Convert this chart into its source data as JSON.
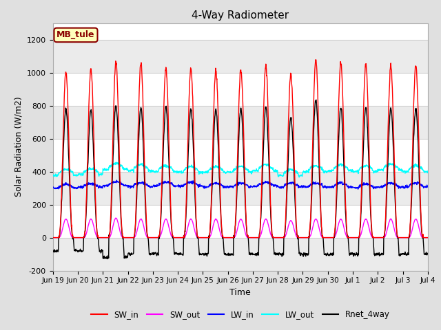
{
  "title": "4-Way Radiometer",
  "xlabel": "Time",
  "ylabel": "Solar Radiation (W/m2)",
  "ylim": [
    -200,
    1300
  ],
  "yticks": [
    -200,
    0,
    200,
    400,
    600,
    800,
    1000,
    1200
  ],
  "station_label": "MB_tule",
  "station_label_color": "#8B0000",
  "station_label_bg": "#FFFFBB",
  "x_tick_labels": [
    "Jun 19",
    "Jun 20",
    "Jun 21",
    "Jun 22",
    "Jun 23",
    "Jun 24",
    "Jun 25",
    "Jun 26",
    "Jun 27",
    "Jun 28",
    "Jun 29",
    "Jun 30",
    "Jul 1",
    "Jul 2",
    "Jul 3",
    "Jul 4"
  ],
  "legend_entries": [
    "SW_in",
    "SW_out",
    "LW_in",
    "LW_out",
    "Rnet_4way"
  ],
  "legend_colors": [
    "#FF0000",
    "#FF00FF",
    "#0000FF",
    "#00FFFF",
    "#000000"
  ],
  "bg_color": "#E0E0E0",
  "plot_bg_color": "#FFFFFF",
  "grid_color": "#D0D0D0",
  "n_days": 15,
  "hours_per_day": 24,
  "pts_per_hour": 4,
  "SW_in_peak": [
    1005,
    1020,
    1060,
    1055,
    1025,
    1020,
    1015,
    1020,
    1040,
    990,
    1075,
    1065,
    1050,
    1040,
    1045
  ],
  "SW_out_peak": [
    115,
    115,
    120,
    115,
    115,
    115,
    115,
    115,
    115,
    105,
    115,
    115,
    115,
    115,
    115
  ],
  "LW_in_base": [
    305,
    310,
    320,
    315,
    318,
    318,
    312,
    312,
    318,
    312,
    312,
    312,
    308,
    312,
    312
  ],
  "LW_out_base": [
    390,
    395,
    425,
    418,
    412,
    408,
    408,
    408,
    418,
    388,
    412,
    418,
    412,
    422,
    412
  ],
  "Rnet_peak": [
    780,
    775,
    800,
    790,
    795,
    780,
    775,
    780,
    790,
    730,
    835,
    785,
    790,
    785,
    780
  ],
  "Rnet_night": [
    -80,
    -80,
    -120,
    -100,
    -100,
    -100,
    -100,
    -100,
    -100,
    -100,
    -100,
    -100,
    -100,
    -100,
    -100
  ],
  "sunrise": 5.5,
  "sunset": 19.5
}
